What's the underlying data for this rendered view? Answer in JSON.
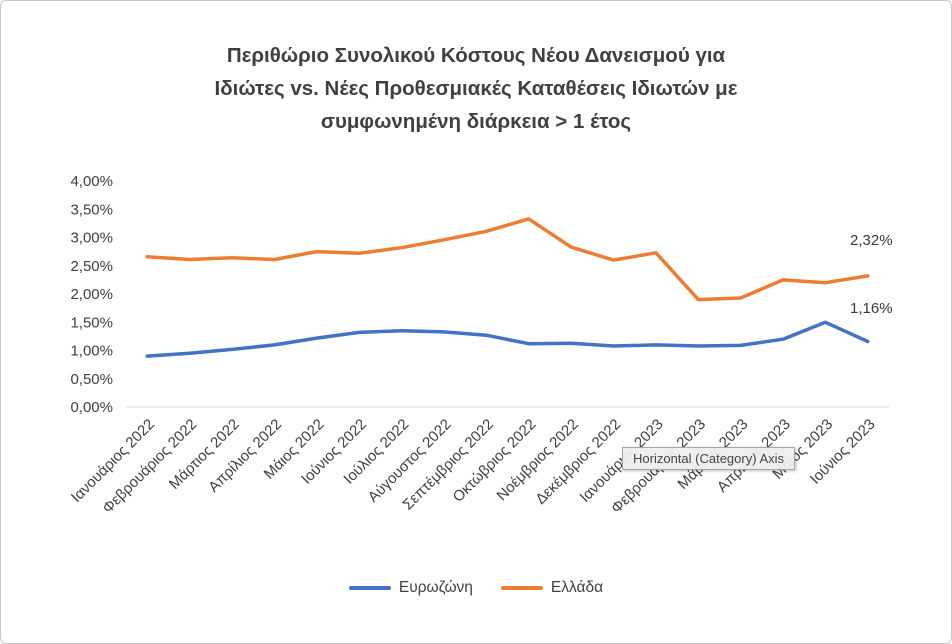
{
  "title_lines": [
    "Περιθώριο Συνολικού Κόστους Νέου Δανεισμού για",
    "Ιδιώτες vs. Νέες Προθεσμιακές Καταθέσεις Ιδιωτών με",
    "συμφωνημένη διάρκεια > 1 έτος"
  ],
  "tooltip": {
    "text": "Horizontal (Category) Axis"
  },
  "colors": {
    "eurozone": "#4472C4",
    "greece": "#ED7D31",
    "axis": "#D9D9D9",
    "text": "#404040"
  },
  "chart_data": {
    "type": "line",
    "title": "Περιθώριο Συνολικού Κόστους Νέου Δανεισμού για Ιδιώτες vs. Νέες Προθεσμιακές Καταθέσεις Ιδιωτών με συμφωνημένη διάρκεια > 1 έτος",
    "categories": [
      "Ιανουάριος 2022",
      "Φεβρουάριος 2022",
      "Μάρτιος 2022",
      "Απρίλιος 2022",
      "Μάιος 2022",
      "Ιούνιος 2022",
      "Ιούλιος 2022",
      "Αύγουστος 2022",
      "Σεπτέμβριος 2022",
      "Οκτώβριος 2022",
      "Νοέμβριος 2022",
      "Δεκέμβριος 2022",
      "Ιανουάριος 2023",
      "Φεβρουάριος 2023",
      "Μάρτιος 2023",
      "Απρίλιος 2023",
      "Μάιος 2023",
      "Ιούνιος 2023"
    ],
    "series": [
      {
        "name": "Ευρωζώνη",
        "color_key": "eurozone",
        "values": [
          0.9,
          0.95,
          1.02,
          1.1,
          1.22,
          1.32,
          1.35,
          1.33,
          1.27,
          1.12,
          1.13,
          1.08,
          1.1,
          1.08,
          1.09,
          1.2,
          1.5,
          1.16
        ],
        "end_label": "1,16%"
      },
      {
        "name": "Ελλάδα",
        "color_key": "greece",
        "values": [
          2.66,
          2.61,
          2.64,
          2.61,
          2.75,
          2.72,
          2.82,
          2.96,
          3.11,
          3.33,
          2.83,
          2.6,
          2.73,
          1.9,
          1.93,
          2.25,
          2.2,
          2.32
        ],
        "end_label": "2,32%"
      }
    ],
    "ylim": [
      0,
      4
    ],
    "ytick_step": 0.5,
    "ytick_labels": [
      "0,00%",
      "0,50%",
      "1,00%",
      "1,50%",
      "2,00%",
      "2,50%",
      "3,00%",
      "3,50%",
      "4,00%"
    ],
    "grid": false,
    "legend_position": "bottom"
  }
}
